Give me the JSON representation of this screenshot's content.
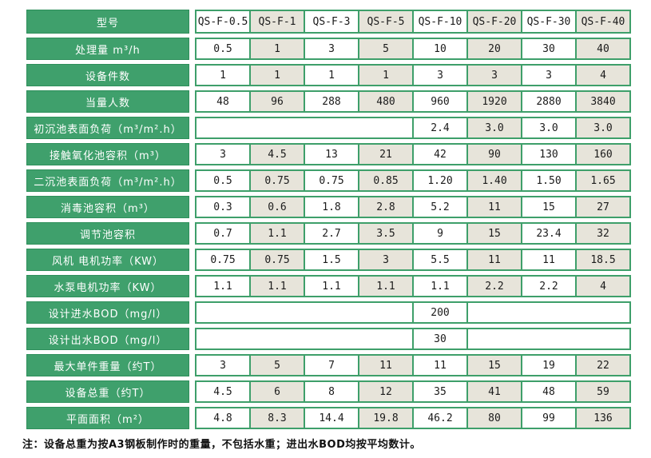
{
  "colors": {
    "header_green": "#3FA06C",
    "border_green": "#3E9F6A",
    "label_border_green": "#2E8F5B",
    "shaded_cell_beige": "#E7E4DA",
    "cell_white": "#FFFFFF",
    "label_text": "#FFFFFF",
    "value_text": "#1B1B1B"
  },
  "table": {
    "header": {
      "label": "型号",
      "models": [
        "QS-F-0.5",
        "QS-F-1",
        "QS-F-3",
        "QS-F-5",
        "QS-F-10",
        "QS-F-20",
        "QS-F-30",
        "QS-F-40"
      ]
    },
    "rows": [
      {
        "label": "处理量 m³/h",
        "cells": [
          {
            "v": "0.5"
          },
          {
            "v": "1"
          },
          {
            "v": "3"
          },
          {
            "v": "5"
          },
          {
            "v": "10"
          },
          {
            "v": "20"
          },
          {
            "v": "30"
          },
          {
            "v": "40"
          }
        ]
      },
      {
        "label": "设备件数",
        "cells": [
          {
            "v": "1"
          },
          {
            "v": "1"
          },
          {
            "v": "1"
          },
          {
            "v": "1"
          },
          {
            "v": "3"
          },
          {
            "v": "3"
          },
          {
            "v": "3"
          },
          {
            "v": "4"
          }
        ]
      },
      {
        "label": "当量人数",
        "cells": [
          {
            "v": "48"
          },
          {
            "v": "96"
          },
          {
            "v": "288"
          },
          {
            "v": "480"
          },
          {
            "v": "960"
          },
          {
            "v": "1920"
          },
          {
            "v": "2880"
          },
          {
            "v": "3840"
          }
        ]
      },
      {
        "label": "初沉池表面负荷（m³/m².h）",
        "cells": [
          {
            "v": "",
            "span": 4
          },
          {
            "v": "2.4"
          },
          {
            "v": "3.0"
          },
          {
            "v": "3.0"
          },
          {
            "v": "3.0"
          }
        ]
      },
      {
        "label": "接触氧化池容积（m³）",
        "cells": [
          {
            "v": "3"
          },
          {
            "v": "4.5"
          },
          {
            "v": "13"
          },
          {
            "v": "21"
          },
          {
            "v": "42"
          },
          {
            "v": "90"
          },
          {
            "v": "130"
          },
          {
            "v": "160"
          }
        ]
      },
      {
        "label": "二沉池表面负荷（m³/m².h）",
        "cells": [
          {
            "v": "0.5"
          },
          {
            "v": "0.75"
          },
          {
            "v": "0.75"
          },
          {
            "v": "0.85"
          },
          {
            "v": "1.20"
          },
          {
            "v": "1.40"
          },
          {
            "v": "1.50"
          },
          {
            "v": "1.65"
          }
        ]
      },
      {
        "label": "消毒池容积（m³）",
        "cells": [
          {
            "v": "0.3"
          },
          {
            "v": "0.6"
          },
          {
            "v": "1.8"
          },
          {
            "v": "2.8"
          },
          {
            "v": "5.2"
          },
          {
            "v": "11"
          },
          {
            "v": "15"
          },
          {
            "v": "27"
          }
        ]
      },
      {
        "label": "调节池容积",
        "cells": [
          {
            "v": "0.7"
          },
          {
            "v": "1.1"
          },
          {
            "v": "2.7"
          },
          {
            "v": "3.5"
          },
          {
            "v": "9"
          },
          {
            "v": "15"
          },
          {
            "v": "23.4"
          },
          {
            "v": "32"
          }
        ]
      },
      {
        "label": "风机 电机功率（KW）",
        "cells": [
          {
            "v": "0.75"
          },
          {
            "v": "0.75"
          },
          {
            "v": "1.5"
          },
          {
            "v": "3"
          },
          {
            "v": "5.5"
          },
          {
            "v": "11"
          },
          {
            "v": "11"
          },
          {
            "v": "18.5"
          }
        ]
      },
      {
        "label": "水泵电机功率（KW）",
        "cells": [
          {
            "v": "1.1"
          },
          {
            "v": "1.1"
          },
          {
            "v": "1.1"
          },
          {
            "v": "1.1"
          },
          {
            "v": "1.1"
          },
          {
            "v": "2.2"
          },
          {
            "v": "2.2"
          },
          {
            "v": "4"
          }
        ]
      },
      {
        "label": "设计进水BOD（mg/l）",
        "cells": [
          {
            "v": "",
            "span": 4
          },
          {
            "v": "200"
          },
          {
            "v": "",
            "span": 3
          }
        ]
      },
      {
        "label": "设计出水BOD（mg/l）",
        "cells": [
          {
            "v": "",
            "span": 4
          },
          {
            "v": "30"
          },
          {
            "v": "",
            "span": 3
          }
        ]
      },
      {
        "label": "最大单件重量（约T）",
        "cells": [
          {
            "v": "3"
          },
          {
            "v": "5"
          },
          {
            "v": "7"
          },
          {
            "v": "11"
          },
          {
            "v": "11"
          },
          {
            "v": "15"
          },
          {
            "v": "19"
          },
          {
            "v": "22"
          }
        ]
      },
      {
        "label": "设备总重（约T）",
        "cells": [
          {
            "v": "4.5"
          },
          {
            "v": "6"
          },
          {
            "v": "8"
          },
          {
            "v": "12"
          },
          {
            "v": "35"
          },
          {
            "v": "41"
          },
          {
            "v": "48"
          },
          {
            "v": "59"
          }
        ]
      },
      {
        "label": "平面面积（m²）",
        "cells": [
          {
            "v": "4.8"
          },
          {
            "v": "8.3"
          },
          {
            "v": "14.4"
          },
          {
            "v": "19.8"
          },
          {
            "v": "46.2"
          },
          {
            "v": "80"
          },
          {
            "v": "99"
          },
          {
            "v": "136"
          }
        ]
      }
    ]
  },
  "footnote": "注：设备总重为按A3钢板制作时的重量，不包括水重；进出水BOD均按平均数计。"
}
